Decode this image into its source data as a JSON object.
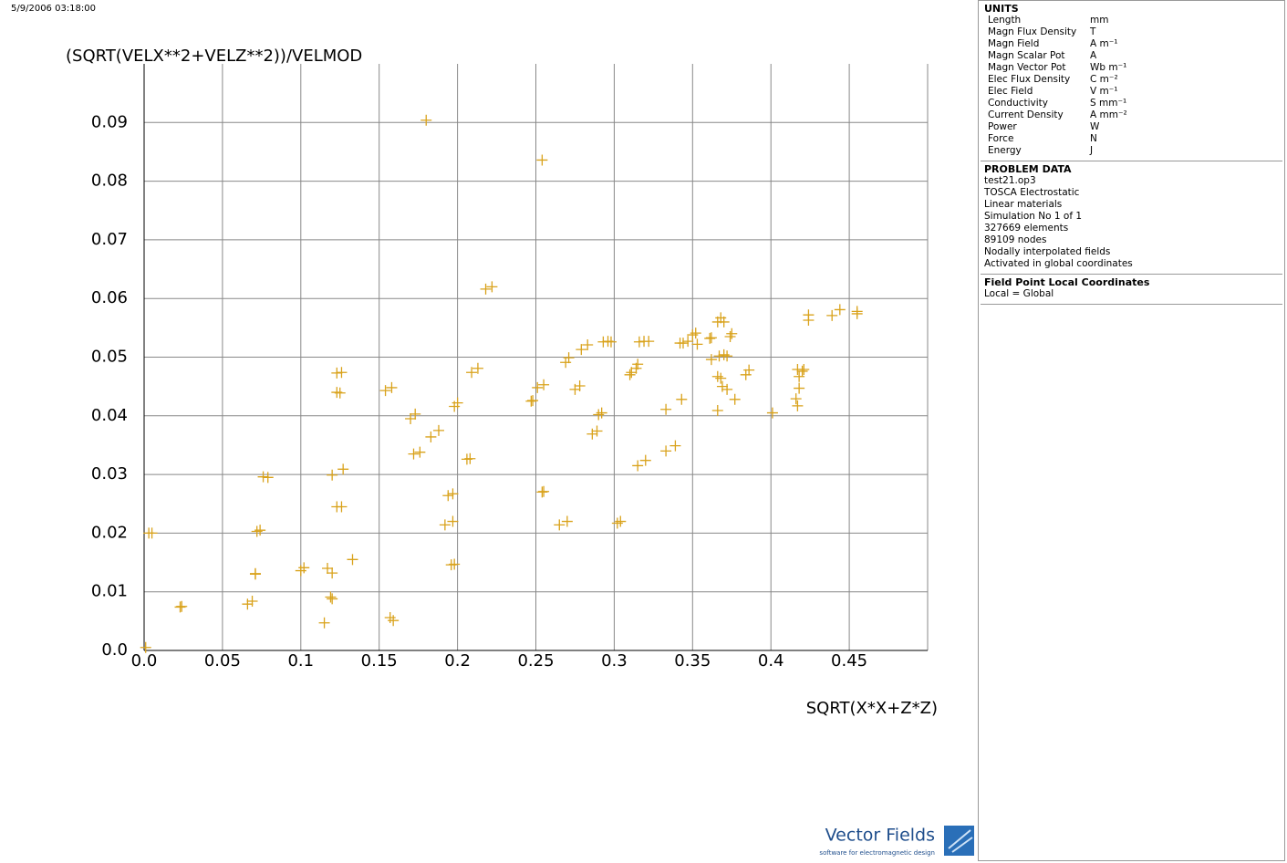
{
  "timestamp": "5/9/2006 03:18:00",
  "chart_data": {
    "type": "scatter",
    "y_label": "(SQRT(VELX**2+VELZ**2))/VELMOD",
    "x_label": "SQRT(X*X+Z*Z)",
    "xlim": [
      0,
      0.5
    ],
    "ylim": [
      0,
      0.1
    ],
    "xticks": [
      {
        "value": 0,
        "label": "0.0"
      },
      0.05,
      0.1,
      0.15,
      0.2,
      0.25,
      0.3,
      0.35,
      0.4,
      0.45
    ],
    "yticks": [
      {
        "value": 0,
        "label": "0.0"
      },
      0.01,
      0.02,
      0.03,
      0.04,
      0.05,
      0.06,
      0.07,
      0.08,
      0.09
    ],
    "grid": true,
    "x": [
      0.001,
      0.003,
      0.005,
      0.023,
      0.024,
      0.066,
      0.069,
      0.071,
      0.071,
      0.072,
      0.074,
      0.076,
      0.079,
      0.1,
      0.102,
      0.115,
      0.117,
      0.12,
      0.119,
      0.12,
      0.12,
      0.123,
      0.126,
      0.123,
      0.125,
      0.123,
      0.126,
      0.127,
      0.133,
      0.154,
      0.158,
      0.157,
      0.159,
      0.17,
      0.173,
      0.172,
      0.176,
      0.18,
      0.183,
      0.188,
      0.192,
      0.194,
      0.197,
      0.196,
      0.198,
      0.197,
      0.198,
      0.2,
      0.206,
      0.208,
      0.209,
      0.213,
      0.218,
      0.222,
      0.247,
      0.248,
      0.251,
      0.255,
      0.254,
      0.254,
      0.255,
      0.265,
      0.27,
      0.269,
      0.271,
      0.275,
      0.278,
      0.279,
      0.283,
      0.286,
      0.289,
      0.29,
      0.292,
      0.293,
      0.296,
      0.298,
      0.302,
      0.304,
      0.31,
      0.311,
      0.314,
      0.315,
      0.315,
      0.32,
      0.316,
      0.319,
      0.322,
      0.333,
      0.333,
      0.339,
      0.342,
      0.344,
      0.343,
      0.347,
      0.35,
      0.352,
      0.353,
      0.361,
      0.362,
      0.362,
      0.366,
      0.366,
      0.368,
      0.37,
      0.366,
      0.368,
      0.367,
      0.37,
      0.372,
      0.369,
      0.372,
      0.374,
      0.375,
      0.377,
      0.384,
      0.386,
      0.401,
      0.416,
      0.417,
      0.417,
      0.42,
      0.418,
      0.421,
      0.418,
      0.424,
      0.424,
      0.439,
      0.444,
      0.455,
      0.455
    ],
    "series": [
      {
        "color": "#d9a21b",
        "values": [
          0.0005,
          0.02,
          0.02,
          0.0074,
          0.0075,
          0.0079,
          0.0084,
          0.0131,
          0.013,
          0.0203,
          0.0205,
          0.0296,
          0.0295,
          0.0136,
          0.0141,
          0.0047,
          0.014,
          0.0132,
          0.0091,
          0.0088,
          0.0299,
          0.0473,
          0.0474,
          0.044,
          0.0439,
          0.0245,
          0.0245,
          0.0309,
          0.0155,
          0.0443,
          0.0448,
          0.0056,
          0.0051,
          0.0395,
          0.0403,
          0.0335,
          0.0338,
          0.0904,
          0.0364,
          0.0375,
          0.0214,
          0.0264,
          0.0267,
          0.0146,
          0.0147,
          0.022,
          0.0416,
          0.0422,
          0.0326,
          0.0327,
          0.0474,
          0.0481,
          0.0616,
          0.062,
          0.0425,
          0.0426,
          0.0448,
          0.0453,
          0.0836,
          0.027,
          0.0271,
          0.0214,
          0.022,
          0.0491,
          0.0499,
          0.0445,
          0.0451,
          0.0513,
          0.0521,
          0.0369,
          0.0374,
          0.0402,
          0.0405,
          0.0526,
          0.0527,
          0.0526,
          0.0217,
          0.022,
          0.047,
          0.0474,
          0.0481,
          0.0488,
          0.0315,
          0.0324,
          0.0526,
          0.0527,
          0.0527,
          0.0411,
          0.034,
          0.0349,
          0.0524,
          0.0524,
          0.0428,
          0.0527,
          0.0538,
          0.0541,
          0.0522,
          0.0532,
          0.0533,
          0.0496,
          0.0409,
          0.056,
          0.0567,
          0.056,
          0.0467,
          0.0464,
          0.0502,
          0.0504,
          0.0502,
          0.045,
          0.0445,
          0.0535,
          0.054,
          0.0428,
          0.047,
          0.0478,
          0.0405,
          0.0429,
          0.0417,
          0.0479,
          0.0476,
          0.0467,
          0.0479,
          0.0447,
          0.0572,
          0.0563,
          0.0571,
          0.0581,
          0.0578,
          0.0574
        ]
      }
    ]
  },
  "units": {
    "title": "UNITS",
    "rows": [
      [
        "Length",
        "mm"
      ],
      [
        "Magn Flux Density",
        "T"
      ],
      [
        "Magn Field",
        "A m⁻¹"
      ],
      [
        "Magn Scalar Pot",
        "A"
      ],
      [
        "Magn Vector Pot",
        "Wb m⁻¹"
      ],
      [
        "Elec Flux Density",
        "C m⁻²"
      ],
      [
        "Elec Field",
        "V m⁻¹"
      ],
      [
        "Conductivity",
        "S mm⁻¹"
      ],
      [
        "Current Density",
        "A mm⁻²"
      ],
      [
        "Power",
        "W"
      ],
      [
        "Force",
        "N"
      ],
      [
        "Energy",
        "J"
      ]
    ]
  },
  "problem_data": {
    "title": "PROBLEM DATA",
    "lines": [
      "test21.op3",
      "TOSCA Electrostatic",
      "Linear materials",
      "Simulation No 1 of 1",
      "327669 elements",
      "89109 nodes",
      "Nodally interpolated fields",
      "Activated in global coordinates"
    ]
  },
  "field_point": {
    "title": "Field Point Local Coordinates",
    "lines": [
      "Local = Global"
    ]
  },
  "logo": {
    "name": "Vector Fields",
    "tagline": "software for electromagnetic design"
  }
}
